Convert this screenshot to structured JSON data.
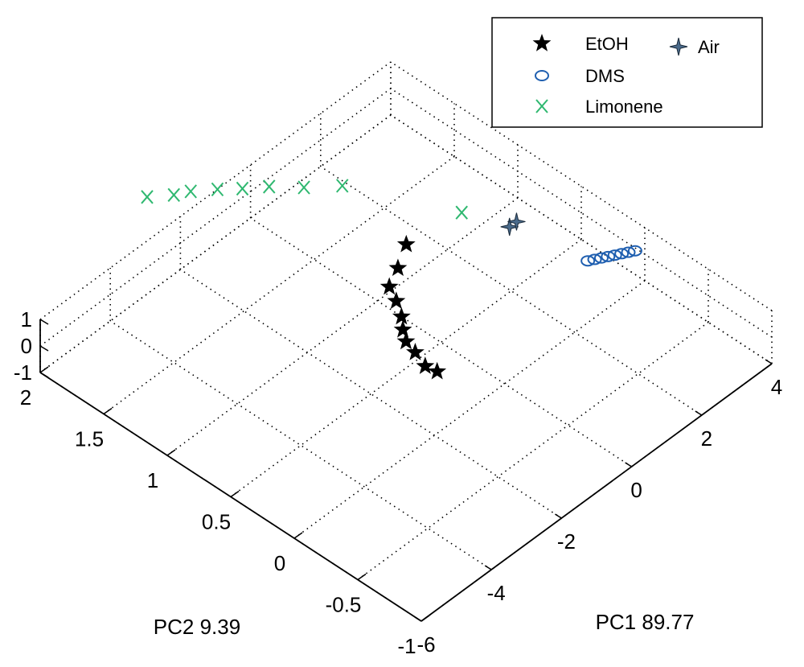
{
  "chart_data": {
    "type": "scatter3d",
    "xlabel": "PC1 89.77",
    "ylabel": "PC2 9.39",
    "zlabel": "",
    "xlim": [
      -6,
      4
    ],
    "ylim": [
      -1,
      2
    ],
    "zlim": [
      -1,
      1
    ],
    "x_ticks": [
      "-6",
      "-4",
      "-2",
      "0",
      "2",
      "4"
    ],
    "y_ticks": [
      "-1",
      "-0.5",
      "0",
      "0.5",
      "1",
      "1.5",
      "2"
    ],
    "z_ticks": [
      "-1",
      "0",
      "1"
    ],
    "grid": true,
    "legend_position": "top-right",
    "colors": {
      "EtOH": "#000000",
      "DMS": "#1f5fb0",
      "Limonene": "#2fb870",
      "Air": "#4a6a8a"
    },
    "series": [
      {
        "name": "EtOH",
        "marker": "star",
        "points": [
          [
            -1.2,
            0.2,
            0
          ],
          [
            -1.25,
            0.28,
            0
          ],
          [
            -1.1,
            0.4,
            0
          ],
          [
            -1.0,
            0.5,
            0
          ],
          [
            -0.8,
            0.58,
            0
          ],
          [
            -0.55,
            0.66,
            0
          ],
          [
            -0.3,
            0.77,
            0
          ],
          [
            -0.1,
            0.88,
            0
          ],
          [
            0.4,
            0.95,
            0
          ],
          [
            1.0,
            1.05,
            0
          ]
        ]
      },
      {
        "name": "DMS",
        "marker": "circle",
        "points": [
          [
            3.1,
            0.2,
            0
          ],
          [
            3.22,
            0.18,
            0
          ],
          [
            3.34,
            0.16,
            0
          ],
          [
            3.46,
            0.14,
            0
          ],
          [
            3.58,
            0.12,
            0
          ],
          [
            3.7,
            0.1,
            0
          ],
          [
            3.82,
            0.08,
            0
          ],
          [
            3.94,
            0.06,
            0
          ]
        ]
      },
      {
        "name": "Limonene",
        "marker": "x",
        "points": [
          [
            -1.5,
            2.4,
            0
          ],
          [
            -1.1,
            2.3,
            0
          ],
          [
            -0.8,
            2.25,
            0
          ],
          [
            -0.4,
            2.15,
            0
          ],
          [
            -0.05,
            2.05,
            0
          ],
          [
            0.35,
            1.95,
            0
          ],
          [
            0.8,
            1.8,
            0
          ],
          [
            1.35,
            1.65,
            0
          ],
          [
            2.4,
            1.0,
            0
          ]
        ]
      },
      {
        "name": "Air",
        "marker": "four-point-star",
        "points": [
          [
            2.75,
            0.72,
            0
          ],
          [
            2.95,
            0.72,
            0
          ]
        ]
      }
    ]
  }
}
